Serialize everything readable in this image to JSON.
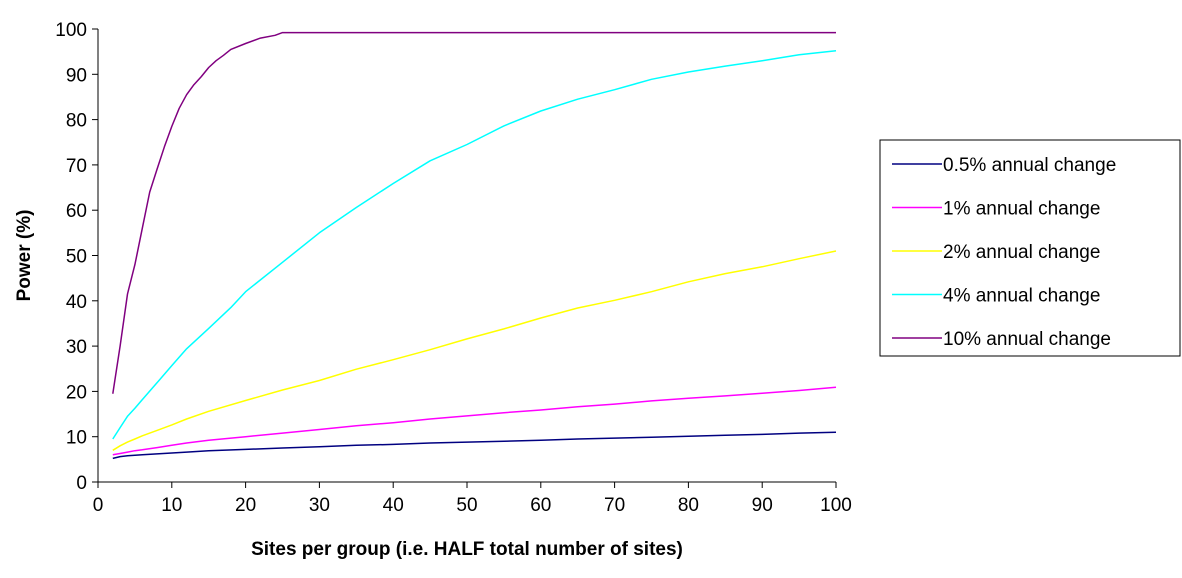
{
  "chart_data": {
    "type": "line",
    "title": "",
    "xlabel": "Sites per group (i.e. HALF total number of sites)",
    "ylabel": "Power (%)",
    "xlim": [
      0,
      100
    ],
    "ylim": [
      0,
      100
    ],
    "xticks": [
      0,
      10,
      20,
      30,
      40,
      50,
      60,
      70,
      80,
      90,
      100
    ],
    "yticks": [
      0,
      10,
      20,
      30,
      40,
      50,
      60,
      70,
      80,
      90,
      100
    ],
    "grid": false,
    "legend_position": "right",
    "series": [
      {
        "name": "0.5% annual change",
        "color": "#000080",
        "x": [
          2,
          3,
          4,
          5,
          6,
          8,
          10,
          12,
          15,
          20,
          25,
          30,
          35,
          40,
          45,
          50,
          55,
          60,
          65,
          70,
          75,
          80,
          85,
          90,
          95,
          100
        ],
        "y": [
          5.2,
          5.6,
          5.8,
          5.9,
          6.0,
          6.2,
          6.4,
          6.6,
          6.9,
          7.2,
          7.5,
          7.8,
          8.1,
          8.3,
          8.6,
          8.8,
          9.0,
          9.2,
          9.5,
          9.7,
          9.9,
          10.1,
          10.3,
          10.5,
          10.8,
          11.0
        ]
      },
      {
        "name": "1% annual change",
        "color": "#ff00ff",
        "x": [
          2,
          3,
          4,
          5,
          6,
          8,
          10,
          12,
          15,
          20,
          25,
          30,
          35,
          40,
          45,
          50,
          55,
          60,
          65,
          70,
          75,
          80,
          85,
          90,
          95,
          100
        ],
        "y": [
          6.0,
          6.3,
          6.6,
          6.9,
          7.1,
          7.6,
          8.1,
          8.6,
          9.2,
          10.0,
          10.8,
          11.6,
          12.4,
          13.1,
          13.9,
          14.6,
          15.3,
          15.9,
          16.6,
          17.2,
          17.9,
          18.5,
          19.0,
          19.6,
          20.2,
          20.9
        ]
      },
      {
        "name": "2% annual change",
        "color": "#ffff00",
        "x": [
          2,
          3,
          4,
          5,
          6,
          8,
          10,
          12,
          15,
          20,
          25,
          30,
          35,
          40,
          45,
          50,
          55,
          60,
          65,
          70,
          75,
          80,
          85,
          90,
          95,
          100
        ],
        "y": [
          7.0,
          8.0,
          8.8,
          9.5,
          10.2,
          11.4,
          12.6,
          13.9,
          15.6,
          18.0,
          20.3,
          22.4,
          24.9,
          27.0,
          29.2,
          31.6,
          33.8,
          36.2,
          38.4,
          40.1,
          42.0,
          44.2,
          46.0,
          47.5,
          49.3,
          51.0
        ]
      },
      {
        "name": "4% annual change",
        "color": "#00ffff",
        "x": [
          2,
          3,
          4,
          5,
          6,
          8,
          10,
          12,
          15,
          18,
          20,
          25,
          30,
          35,
          40,
          45,
          50,
          55,
          60,
          65,
          70,
          75,
          80,
          85,
          90,
          95,
          100
        ],
        "y": [
          9.5,
          12.0,
          14.5,
          16.3,
          18.2,
          21.9,
          25.7,
          29.4,
          33.9,
          38.5,
          42.0,
          48.5,
          55.0,
          60.6,
          65.9,
          70.9,
          74.5,
          78.6,
          81.9,
          84.5,
          86.6,
          88.9,
          90.5,
          91.8,
          93.0,
          94.3,
          95.2
        ]
      },
      {
        "name": "10% annual change",
        "color": "#800080",
        "x": [
          2,
          3,
          4,
          5,
          6,
          7,
          8,
          9,
          10,
          11,
          12,
          13,
          14,
          15,
          16,
          17,
          18,
          20,
          22,
          24,
          25,
          30,
          40,
          60,
          80,
          100
        ],
        "y": [
          19.5,
          30.0,
          41.5,
          48.0,
          56.0,
          64.0,
          69.0,
          74.0,
          78.5,
          82.5,
          85.5,
          87.7,
          89.5,
          91.5,
          93.0,
          94.2,
          95.5,
          96.8,
          98.0,
          98.6,
          99.2,
          99.2,
          99.2,
          99.2,
          99.2,
          99.2
        ]
      }
    ]
  }
}
